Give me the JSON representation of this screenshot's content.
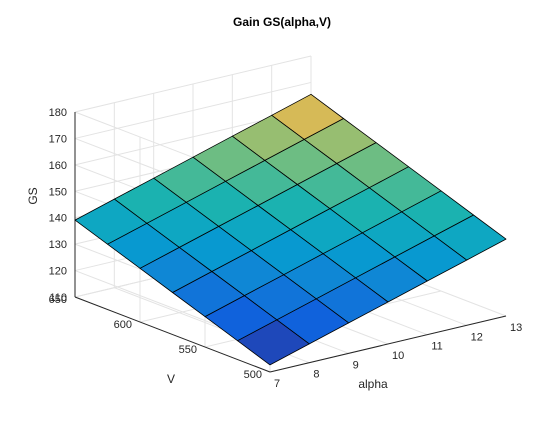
{
  "chart_data": {
    "type": "surface",
    "title": "Gain GS(alpha,V)",
    "xlabel": "alpha",
    "ylabel": "V",
    "zlabel": "GS",
    "x": [
      7,
      8,
      9,
      10,
      11,
      12,
      13
    ],
    "y": [
      500,
      525,
      550,
      575,
      600,
      625,
      650
    ],
    "z": [
      [
        112.7,
        117.1,
        121.5,
        125.9,
        130.3,
        134.7,
        139.1
      ],
      [
        117.1,
        121.5,
        125.9,
        130.3,
        134.7,
        139.1,
        143.5
      ],
      [
        121.5,
        125.9,
        130.3,
        134.7,
        139.1,
        143.5,
        147.9
      ],
      [
        125.9,
        130.3,
        134.7,
        139.1,
        143.5,
        147.9,
        152.3
      ],
      [
        130.3,
        134.7,
        139.1,
        143.5,
        147.9,
        152.3,
        156.7
      ],
      [
        134.7,
        139.1,
        143.5,
        147.9,
        152.3,
        156.7,
        161.1
      ],
      [
        139.1,
        143.5,
        147.9,
        152.3,
        156.7,
        161.1,
        165.5
      ]
    ],
    "xticks": [
      "7",
      "8",
      "9",
      "10",
      "11",
      "12",
      "13"
    ],
    "yticks": [
      "500",
      "550",
      "600",
      "650"
    ],
    "zticks": [
      "110",
      "120",
      "130",
      "140",
      "150",
      "160",
      "170",
      "180"
    ],
    "xlim": [
      7,
      13
    ],
    "ylim": [
      500,
      650
    ],
    "zlim": [
      110,
      180
    ],
    "grid": true,
    "colormap": "parula"
  }
}
